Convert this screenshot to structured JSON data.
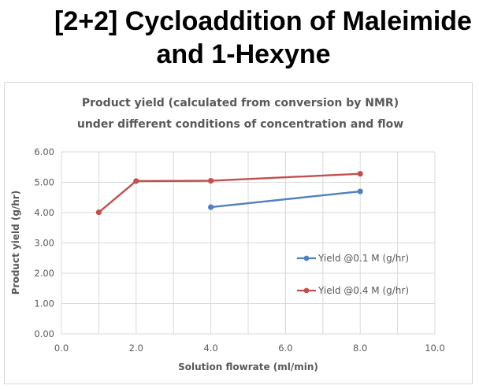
{
  "slide": {
    "title_line1": "[2+2] Cycloaddition of Maleimide",
    "title_line2": "and 1-Hexyne"
  },
  "chart_data": {
    "type": "line",
    "title": "Product yield (calculated from conversion by NMR)",
    "subtitle": "under different conditions of concentration and flow",
    "xlabel": "Solution flowrate (ml/min)",
    "ylabel": "Product yield (g/hr)",
    "xlim": [
      0,
      10
    ],
    "ylim": [
      0,
      6
    ],
    "x_ticks": [
      "0.0",
      "2.0",
      "4.0",
      "6.0",
      "8.0",
      "10.0"
    ],
    "y_ticks": [
      "0.00",
      "1.00",
      "2.00",
      "3.00",
      "4.00",
      "5.00",
      "6.00"
    ],
    "grid": true,
    "legend_position": "right",
    "series": [
      {
        "name": "Yield @0.1 M (g/hr)",
        "color": "#4f81bd",
        "points": [
          [
            4.0,
            4.18
          ],
          [
            8.0,
            4.7
          ]
        ]
      },
      {
        "name": "Yield @0.4 M (g/hr)",
        "color": "#c0504d",
        "points": [
          [
            1.0,
            4.01
          ],
          [
            2.0,
            5.04
          ],
          [
            4.0,
            5.05
          ],
          [
            8.0,
            5.28
          ]
        ]
      }
    ]
  }
}
